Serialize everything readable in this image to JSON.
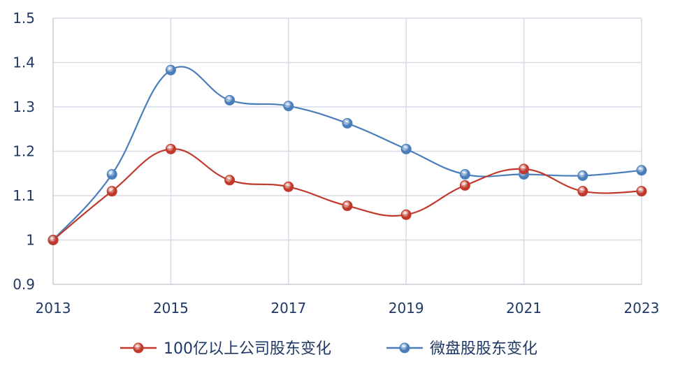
{
  "chart_data": {
    "type": "line",
    "x": [
      2013,
      2014,
      2015,
      2016,
      2017,
      2018,
      2019,
      2020,
      2021,
      2022,
      2023
    ],
    "xticks": [
      "2013",
      "2015",
      "2017",
      "2019",
      "2021",
      "2023"
    ],
    "yticks": [
      "0.9",
      "1",
      "1.1",
      "1.2",
      "1.3",
      "1.4",
      "1.5"
    ],
    "ylim": [
      0.9,
      1.5
    ],
    "xlim": [
      2013,
      2023
    ],
    "grid": true,
    "legend": "bottom",
    "series": [
      {
        "name": "100亿以上公司股东变化",
        "color": "#c0392b",
        "values": [
          1.0,
          1.11,
          1.205,
          1.135,
          1.12,
          1.077,
          1.057,
          1.123,
          1.16,
          1.11,
          1.11
        ]
      },
      {
        "name": "微盘股股东变化",
        "color": "#4a7ebb",
        "values": [
          1.0,
          1.148,
          1.383,
          1.315,
          1.302,
          1.263,
          1.205,
          1.148,
          1.148,
          1.145,
          1.157
        ]
      }
    ]
  }
}
